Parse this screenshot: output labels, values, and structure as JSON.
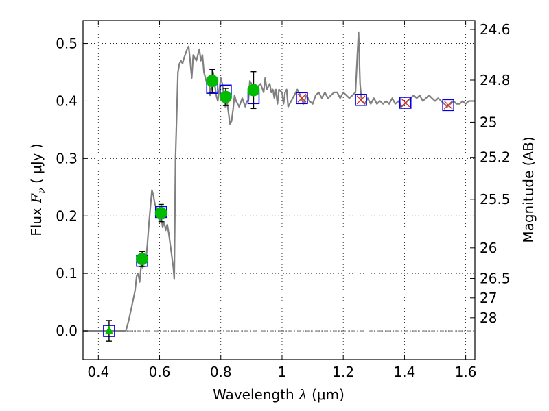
{
  "chart_data": {
    "type": "line",
    "title": "",
    "xlabel_text": "Wavelength",
    "xlabel_symbol": "λ",
    "xlabel_unit": "(μm)",
    "ylabel_text": "Flux",
    "ylabel_symbol": "F",
    "ylabel_subscript": "ν",
    "ylabel_unit": "( μJy )",
    "y2label": "Magnitude (AB)",
    "xlim": [
      0.35,
      1.63
    ],
    "ylim": [
      -0.05,
      0.54
    ],
    "grid": true,
    "grid_style": "dotted",
    "x_ticks": [
      0.4,
      0.6,
      0.8,
      1.0,
      1.2,
      1.4,
      1.6
    ],
    "x_tick_labels": [
      "0.4",
      "0.6",
      "0.8",
      "1",
      "1.2",
      "1.4",
      "1.6"
    ],
    "y_ticks": [
      0.0,
      0.1,
      0.2,
      0.3,
      0.4,
      0.5
    ],
    "y_tick_labels": [
      "0.0",
      "0.1",
      "0.2",
      "0.3",
      "0.4",
      "0.5"
    ],
    "y2_ticks": [
      {
        "label": "24.6",
        "flux": 0.5245
      },
      {
        "label": "24.8",
        "flux": 0.4363
      },
      {
        "label": "25",
        "flux": 0.3631
      },
      {
        "label": "25.2",
        "flux": 0.302
      },
      {
        "label": "25.5",
        "flux": 0.2291
      },
      {
        "label": "26",
        "flux": 0.1445
      },
      {
        "label": "26.5",
        "flux": 0.0912
      },
      {
        "label": "27",
        "flux": 0.0575
      },
      {
        "label": "28",
        "flux": 0.0229
      }
    ],
    "zero_line": {
      "y": 0.0,
      "style": "dash-dot",
      "color": "#555555"
    },
    "colors": {
      "sed": "#808080",
      "observed": "#00bb00",
      "model_box": "#0000ee",
      "model_cross": "#ee2222",
      "errorbar": "#000000"
    },
    "series": [
      {
        "name": "model SED",
        "style": "line",
        "points": [
          [
            0.35,
            0.0
          ],
          [
            0.49,
            0.0
          ],
          [
            0.5,
            0.02
          ],
          [
            0.51,
            0.045
          ],
          [
            0.52,
            0.07
          ],
          [
            0.525,
            0.095
          ],
          [
            0.53,
            0.1
          ],
          [
            0.535,
            0.085
          ],
          [
            0.54,
            0.115
          ],
          [
            0.545,
            0.11
          ],
          [
            0.55,
            0.13
          ],
          [
            0.555,
            0.12
          ],
          [
            0.56,
            0.15
          ],
          [
            0.565,
            0.185
          ],
          [
            0.57,
            0.215
          ],
          [
            0.575,
            0.245
          ],
          [
            0.58,
            0.235
          ],
          [
            0.585,
            0.22
          ],
          [
            0.59,
            0.215
          ],
          [
            0.6,
            0.19
          ],
          [
            0.605,
            0.2
          ],
          [
            0.61,
            0.18
          ],
          [
            0.615,
            0.19
          ],
          [
            0.62,
            0.175
          ],
          [
            0.625,
            0.185
          ],
          [
            0.63,
            0.17
          ],
          [
            0.635,
            0.15
          ],
          [
            0.64,
            0.13
          ],
          [
            0.645,
            0.11
          ],
          [
            0.648,
            0.09
          ],
          [
            0.652,
            0.3
          ],
          [
            0.66,
            0.45
          ],
          [
            0.665,
            0.465
          ],
          [
            0.67,
            0.47
          ],
          [
            0.675,
            0.465
          ],
          [
            0.68,
            0.475
          ],
          [
            0.69,
            0.49
          ],
          [
            0.695,
            0.495
          ],
          [
            0.7,
            0.47
          ],
          [
            0.705,
            0.44
          ],
          [
            0.71,
            0.48
          ],
          [
            0.72,
            0.47
          ],
          [
            0.73,
            0.49
          ],
          [
            0.735,
            0.47
          ],
          [
            0.74,
            0.48
          ],
          [
            0.745,
            0.45
          ],
          [
            0.75,
            0.44
          ],
          [
            0.755,
            0.43
          ],
          [
            0.76,
            0.44
          ],
          [
            0.765,
            0.41
          ],
          [
            0.77,
            0.43
          ],
          [
            0.775,
            0.45
          ],
          [
            0.78,
            0.43
          ],
          [
            0.785,
            0.41
          ],
          [
            0.79,
            0.4
          ],
          [
            0.795,
            0.42
          ],
          [
            0.8,
            0.44
          ],
          [
            0.805,
            0.43
          ],
          [
            0.81,
            0.41
          ],
          [
            0.815,
            0.39
          ],
          [
            0.82,
            0.4
          ],
          [
            0.825,
            0.38
          ],
          [
            0.83,
            0.36
          ],
          [
            0.835,
            0.365
          ],
          [
            0.84,
            0.385
          ],
          [
            0.845,
            0.41
          ],
          [
            0.85,
            0.4
          ],
          [
            0.855,
            0.395
          ],
          [
            0.86,
            0.39
          ],
          [
            0.87,
            0.405
          ],
          [
            0.88,
            0.39
          ],
          [
            0.885,
            0.4
          ],
          [
            0.89,
            0.4
          ],
          [
            0.895,
            0.435
          ],
          [
            0.9,
            0.43
          ],
          [
            0.91,
            0.415
          ],
          [
            0.92,
            0.425
          ],
          [
            0.93,
            0.43
          ],
          [
            0.94,
            0.415
          ],
          [
            0.945,
            0.44
          ],
          [
            0.95,
            0.42
          ],
          [
            0.96,
            0.43
          ],
          [
            0.965,
            0.415
          ],
          [
            0.97,
            0.42
          ],
          [
            0.975,
            0.405
          ],
          [
            0.98,
            0.42
          ],
          [
            0.985,
            0.395
          ],
          [
            0.99,
            0.42
          ],
          [
            1.0,
            0.415
          ],
          [
            1.005,
            0.395
          ],
          [
            1.01,
            0.415
          ],
          [
            1.015,
            0.42
          ],
          [
            1.02,
            0.39
          ],
          [
            1.03,
            0.4
          ],
          [
            1.04,
            0.41
          ],
          [
            1.05,
            0.42
          ],
          [
            1.06,
            0.41
          ],
          [
            1.07,
            0.395
          ],
          [
            1.08,
            0.41
          ],
          [
            1.09,
            0.4
          ],
          [
            1.1,
            0.395
          ],
          [
            1.11,
            0.41
          ],
          [
            1.12,
            0.415
          ],
          [
            1.13,
            0.405
          ],
          [
            1.14,
            0.415
          ],
          [
            1.15,
            0.405
          ],
          [
            1.16,
            0.41
          ],
          [
            1.17,
            0.415
          ],
          [
            1.18,
            0.415
          ],
          [
            1.19,
            0.405
          ],
          [
            1.2,
            0.415
          ],
          [
            1.21,
            0.41
          ],
          [
            1.22,
            0.405
          ],
          [
            1.23,
            0.41
          ],
          [
            1.24,
            0.415
          ],
          [
            1.245,
            0.47
          ],
          [
            1.25,
            0.52
          ],
          [
            1.255,
            0.43
          ],
          [
            1.26,
            0.4
          ],
          [
            1.27,
            0.395
          ],
          [
            1.28,
            0.405
          ],
          [
            1.29,
            0.395
          ],
          [
            1.3,
            0.405
          ],
          [
            1.31,
            0.395
          ],
          [
            1.32,
            0.4
          ],
          [
            1.33,
            0.395
          ],
          [
            1.34,
            0.4
          ],
          [
            1.35,
            0.395
          ],
          [
            1.36,
            0.405
          ],
          [
            1.37,
            0.395
          ],
          [
            1.38,
            0.4
          ],
          [
            1.39,
            0.39
          ],
          [
            1.4,
            0.395
          ],
          [
            1.41,
            0.4
          ],
          [
            1.42,
            0.405
          ],
          [
            1.43,
            0.41
          ],
          [
            1.44,
            0.405
          ],
          [
            1.45,
            0.41
          ],
          [
            1.46,
            0.4
          ],
          [
            1.47,
            0.405
          ],
          [
            1.48,
            0.41
          ],
          [
            1.49,
            0.405
          ],
          [
            1.5,
            0.4
          ],
          [
            1.51,
            0.405
          ],
          [
            1.52,
            0.4
          ],
          [
            1.53,
            0.395
          ],
          [
            1.54,
            0.39
          ],
          [
            1.55,
            0.395
          ],
          [
            1.56,
            0.4
          ],
          [
            1.57,
            0.395
          ],
          [
            1.58,
            0.395
          ],
          [
            1.59,
            0.4
          ],
          [
            1.6,
            0.395
          ],
          [
            1.61,
            0.4
          ],
          [
            1.62,
            0.4
          ],
          [
            1.63,
            0.4
          ]
        ]
      },
      {
        "name": "model photometry (boxes)",
        "style": "square-marker",
        "points": [
          [
            0.435,
            0.0
          ],
          [
            0.543,
            0.122
          ],
          [
            0.605,
            0.207
          ],
          [
            0.772,
            0.423
          ],
          [
            0.816,
            0.418
          ],
          [
            0.907,
            0.405
          ],
          [
            1.065,
            0.405
          ],
          [
            1.258,
            0.402
          ],
          [
            1.403,
            0.397
          ],
          [
            1.543,
            0.393
          ]
        ]
      },
      {
        "name": "model photometry (crosses)",
        "style": "x-marker",
        "points": [
          [
            1.065,
            0.405
          ],
          [
            1.258,
            0.402
          ],
          [
            1.403,
            0.397
          ],
          [
            1.543,
            0.393
          ]
        ]
      },
      {
        "name": "observed photometry",
        "style": "circle-errorbar",
        "points": [
          {
            "x": 0.543,
            "y": 0.125,
            "err": 0.013
          },
          {
            "x": 0.605,
            "y": 0.205,
            "err": 0.015
          },
          {
            "x": 0.772,
            "y": 0.435,
            "err": 0.02
          },
          {
            "x": 0.816,
            "y": 0.407,
            "err": 0.015
          },
          {
            "x": 0.907,
            "y": 0.419,
            "err": 0.032
          }
        ]
      },
      {
        "name": "observed non-detection",
        "style": "triangle-errorbar",
        "points": [
          {
            "x": 0.435,
            "y": 0.0,
            "err": 0.018
          }
        ]
      }
    ]
  }
}
